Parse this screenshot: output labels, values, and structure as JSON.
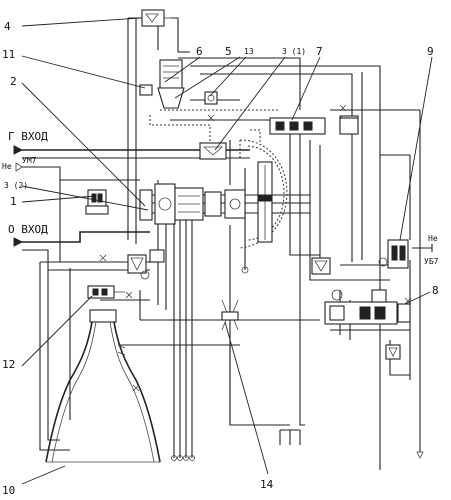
{
  "labels": {
    "callouts": [
      "1",
      "2",
      "3 (2)",
      "3 (1)",
      "4",
      "5",
      "6",
      "7",
      "8",
      "9",
      "10",
      "11",
      "12",
      "13",
      "14"
    ],
    "inlet_fuel": "Г ВХОД",
    "inlet_ox": "О ВХОД",
    "helium_in": "Не",
    "helium_um7": "УМ7",
    "helium_out": "Не",
    "helium_ub7": "УБ7"
  },
  "colors": {
    "line": "#222222",
    "background": "#ffffff"
  }
}
